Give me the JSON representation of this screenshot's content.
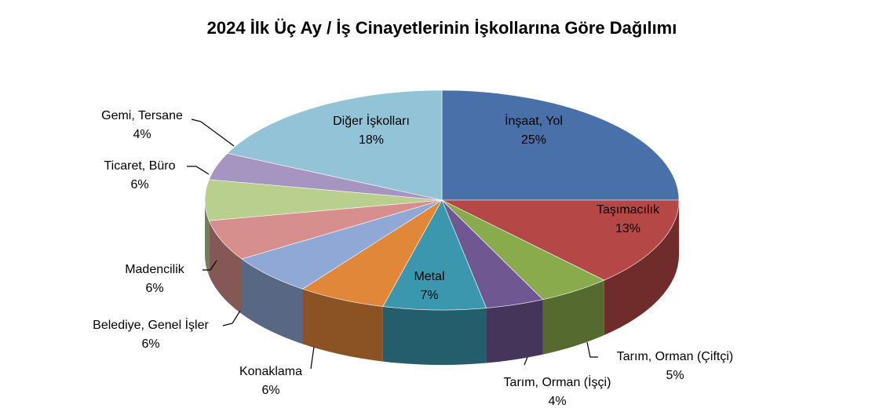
{
  "chart_data": {
    "type": "pie3d",
    "title": "2024 İlk Üç Ay / İş Cinayetlerinin İşkollarına Göre Dağılımı",
    "categories": [
      "İnşaat, Yol",
      "Taşımacılık",
      "Tarım, Orman (Çiftçi)",
      "Tarım, Orman (İşçi)",
      "Metal",
      "Konaklama",
      "Belediye, Genel İşler",
      "Madencilik",
      "Ticaret, Büro",
      "Gemi, Tersane",
      "Diğer İşkolları"
    ],
    "values": [
      25,
      13,
      5,
      4,
      7,
      6,
      6,
      6,
      6,
      4,
      18
    ],
    "value_labels": [
      "25%",
      "13%",
      "5%",
      "4%",
      "7%",
      "6%",
      "6%",
      "6%",
      "6%",
      "4%",
      "18%"
    ],
    "colors": [
      "#4a70aa",
      "#b54846",
      "#8aab4c",
      "#6f5792",
      "#3a97ad",
      "#e0873a",
      "#8fa8d6",
      "#d78f8e",
      "#b8cf8e",
      "#a795c1",
      "#93c3d6"
    ]
  }
}
